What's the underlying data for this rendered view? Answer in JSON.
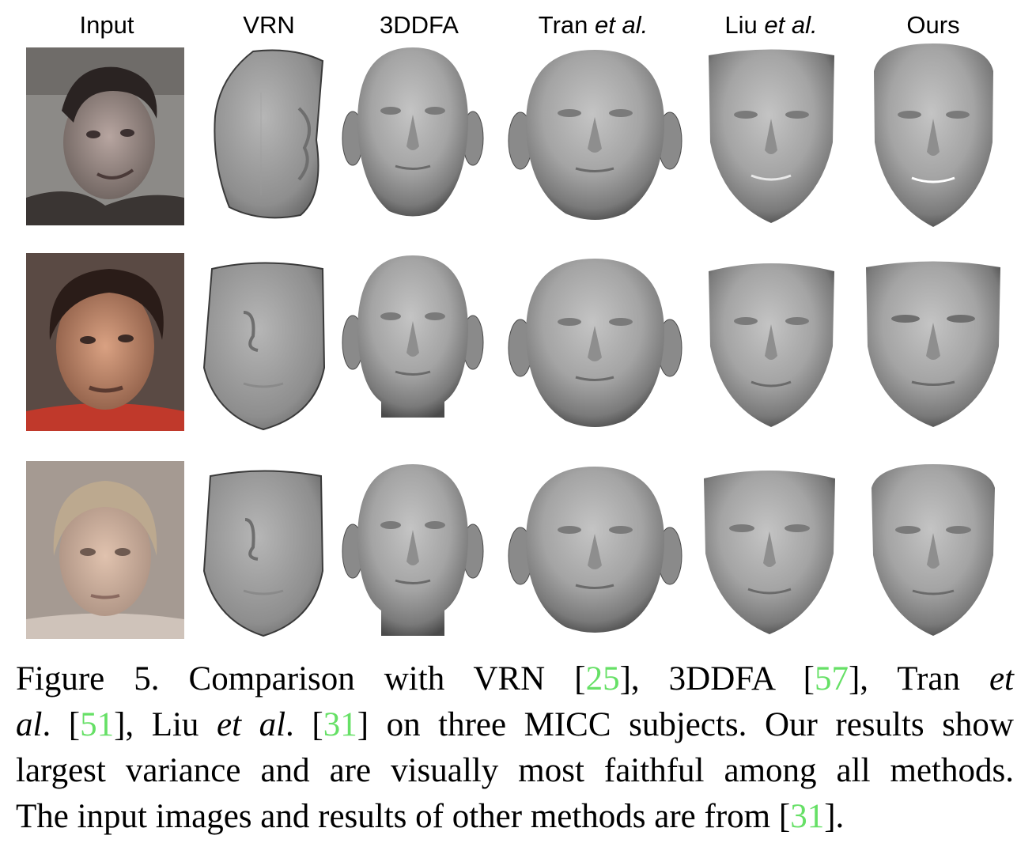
{
  "columns": [
    {
      "plain": "Input",
      "italic": ""
    },
    {
      "plain": "VRN",
      "italic": ""
    },
    {
      "plain": "3DDFA",
      "italic": ""
    },
    {
      "plain": "Tran ",
      "italic": "et al."
    },
    {
      "plain": "Liu ",
      "italic": "et al."
    },
    {
      "plain": "Ours",
      "italic": ""
    }
  ],
  "caption": {
    "line1": {
      "a": "Figure 5. Comparison with VRN [",
      "c1": "25",
      "b": "], 3DDFA [",
      "c2": "57",
      "c": "], Tran ",
      "d": "et"
    },
    "line2": {
      "a": "al",
      "b": ". [",
      "c1": "51",
      "c": "], Liu ",
      "d": "et al",
      "e": ". [",
      "c2": "31",
      "f": "] on three MICC subjects. Our results show"
    },
    "line3": "largest variance and are visually most faithful among all methods.",
    "line4": {
      "a": "The input images and results of other methods are from [",
      "c1": "31",
      "b": "]."
    }
  },
  "colors": {
    "citation": "#66e066",
    "face_light": "#bdbdbd",
    "face_dark": "#4a4a4a"
  }
}
